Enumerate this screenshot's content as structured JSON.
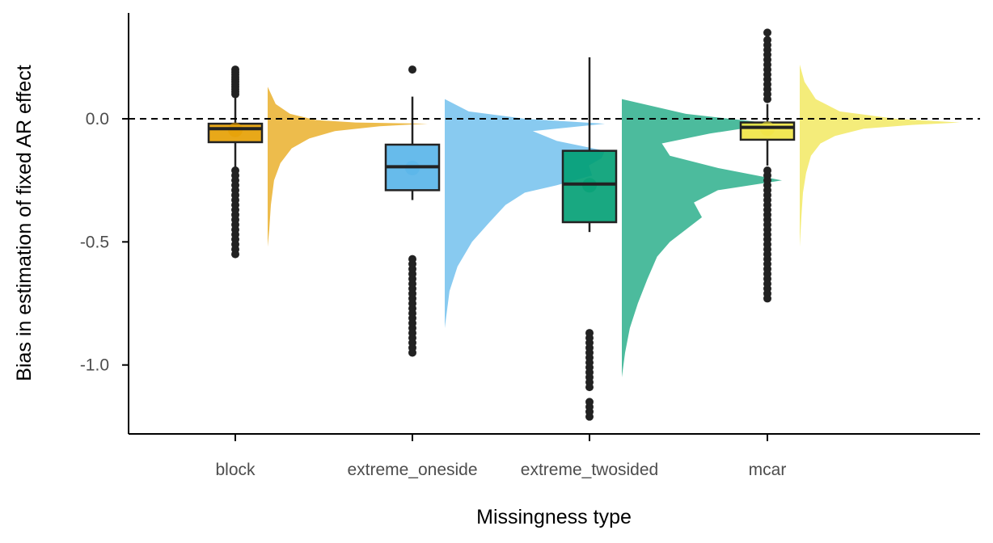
{
  "chart_data": {
    "type": "raincloud",
    "title": "",
    "xlabel": "Missingness type",
    "ylabel": "Bias in estimation of fixed AR effect",
    "ylim": [
      -1.28,
      0.43
    ],
    "yticks": [
      0.0,
      -0.5,
      -1.0
    ],
    "ytick_labels": [
      "0.0",
      "-0.5",
      "-1.0"
    ],
    "reference_line": {
      "y": 0.0,
      "style": "dashed"
    },
    "grid": false,
    "legend": "none",
    "categories": [
      "block",
      "extreme_oneside",
      "extreme_twosided",
      "mcar"
    ],
    "series": [
      {
        "category": "block",
        "color": "#E69F00",
        "box": {
          "q1": -0.095,
          "median": -0.04,
          "q3": -0.02,
          "whisker_low": -0.2,
          "whisker_high": 0.09
        },
        "mean": -0.045,
        "outliers_high": [
          0.2,
          0.19,
          0.18,
          0.17,
          0.16,
          0.15,
          0.14,
          0.13,
          0.12,
          0.11,
          0.1
        ],
        "outliers_low": [
          -0.55,
          -0.53,
          -0.51,
          -0.49,
          -0.47,
          -0.45,
          -0.43,
          -0.41,
          -0.39,
          -0.37,
          -0.35,
          -0.33,
          -0.31,
          -0.29,
          -0.27,
          -0.25,
          -0.23,
          -0.21
        ],
        "density": {
          "y": [
            0.13,
            0.06,
            0.02,
            -0.005,
            -0.015,
            -0.02,
            -0.03,
            -0.05,
            -0.08,
            -0.12,
            -0.18,
            -0.25,
            -0.35,
            -0.45,
            -0.52
          ],
          "d": [
            0.0,
            0.05,
            0.14,
            0.3,
            0.55,
            1.0,
            0.7,
            0.42,
            0.26,
            0.15,
            0.08,
            0.04,
            0.02,
            0.01,
            0.0
          ]
        }
      },
      {
        "category": "extreme_oneside",
        "color": "#56B4E9",
        "box": {
          "q1": -0.29,
          "median": -0.195,
          "q3": -0.105,
          "whisker_low": -0.33,
          "whisker_high": 0.09
        },
        "mean": -0.2,
        "outliers_high": [
          0.2
        ],
        "outliers_low": [
          -0.95,
          -0.93,
          -0.91,
          -0.89,
          -0.87,
          -0.85,
          -0.83,
          -0.81,
          -0.79,
          -0.77,
          -0.75,
          -0.73,
          -0.71,
          -0.69,
          -0.67,
          -0.65,
          -0.63,
          -0.61,
          -0.59,
          -0.57
        ],
        "density": {
          "y": [
            0.08,
            0.03,
            0.0,
            -0.02,
            -0.05,
            -0.09,
            -0.13,
            -0.16,
            -0.19,
            -0.23,
            -0.27,
            -0.3,
            -0.35,
            -0.42,
            -0.5,
            -0.6,
            -0.7,
            -0.85
          ],
          "d": [
            0.0,
            0.15,
            0.5,
            1.0,
            0.55,
            0.7,
            1.0,
            0.98,
            0.9,
            0.92,
            0.7,
            0.5,
            0.38,
            0.28,
            0.17,
            0.08,
            0.03,
            0.0
          ]
        }
      },
      {
        "category": "extreme_twosided",
        "color": "#009E73",
        "box": {
          "q1": -0.42,
          "median": -0.265,
          "q3": -0.13,
          "whisker_low": -0.46,
          "whisker_high": 0.25
        },
        "mean": -0.27,
        "outliers_high": [],
        "outliers_low": [
          -1.21,
          -1.19,
          -1.17,
          -1.15,
          -1.09,
          -1.07,
          -1.05,
          -1.03,
          -1.01,
          -0.99,
          -0.97,
          -0.95,
          -0.93,
          -0.91,
          -0.89,
          -0.87
        ],
        "density": {
          "y": [
            0.08,
            0.02,
            -0.02,
            -0.06,
            -0.1,
            -0.15,
            -0.2,
            -0.25,
            -0.29,
            -0.34,
            -0.4,
            -0.45,
            -0.5,
            -0.56,
            -0.65,
            -0.75,
            -0.85,
            -0.95,
            -1.05
          ],
          "d": [
            0.0,
            0.4,
            0.95,
            0.55,
            0.25,
            0.3,
            0.6,
            1.0,
            0.6,
            0.45,
            0.5,
            0.4,
            0.3,
            0.22,
            0.16,
            0.1,
            0.05,
            0.02,
            0.0
          ]
        }
      },
      {
        "category": "mcar",
        "color": "#F0E442",
        "box": {
          "q1": -0.085,
          "median": -0.035,
          "q3": -0.015,
          "whisker_low": -0.19,
          "whisker_high": 0.06
        },
        "mean": -0.04,
        "outliers_high": [
          0.35,
          0.32,
          0.3,
          0.28,
          0.26,
          0.24,
          0.22,
          0.2,
          0.18,
          0.16,
          0.14,
          0.12,
          0.1,
          0.08
        ],
        "outliers_low": [
          -0.73,
          -0.71,
          -0.69,
          -0.67,
          -0.65,
          -0.63,
          -0.61,
          -0.59,
          -0.57,
          -0.55,
          -0.53,
          -0.51,
          -0.49,
          -0.47,
          -0.45,
          -0.43,
          -0.41,
          -0.39,
          -0.37,
          -0.35,
          -0.33,
          -0.31,
          -0.29,
          -0.27,
          -0.25,
          -0.23,
          -0.21
        ],
        "density": {
          "y": [
            0.22,
            0.15,
            0.08,
            0.03,
            0.0,
            -0.015,
            -0.025,
            -0.04,
            -0.07,
            -0.1,
            -0.15,
            -0.22,
            -0.3,
            -0.4,
            -0.52
          ],
          "d": [
            0.0,
            0.03,
            0.1,
            0.25,
            0.6,
            1.0,
            0.7,
            0.4,
            0.22,
            0.13,
            0.07,
            0.04,
            0.02,
            0.01,
            0.0
          ]
        }
      }
    ]
  }
}
